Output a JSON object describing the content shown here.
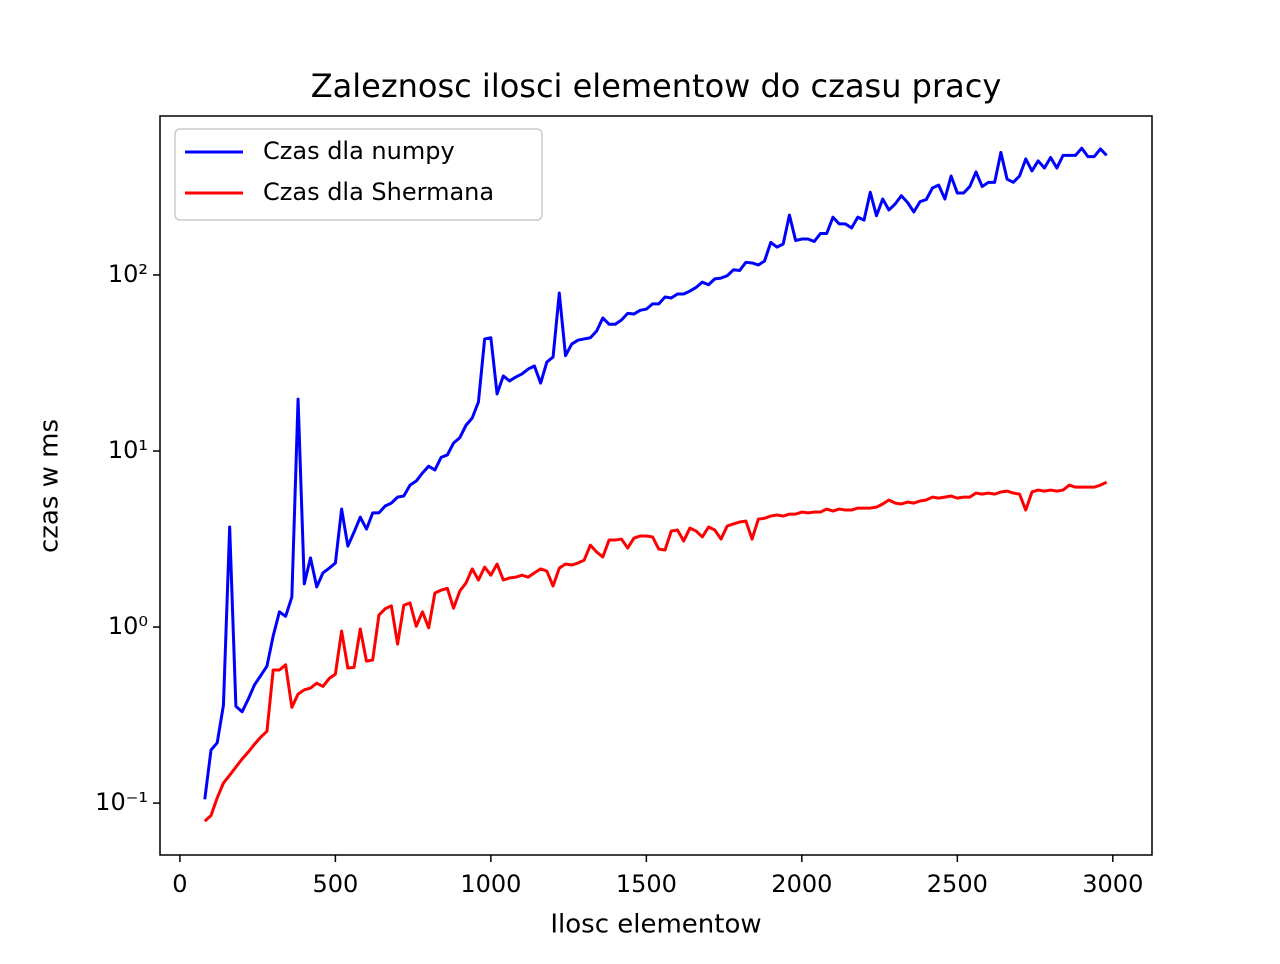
{
  "chart_data": {
    "type": "line",
    "title": "Zaleznosc ilosci elementow do czasu pracy",
    "x_label": "Ilosc elementow",
    "y_label": "czas w ms",
    "x": [
      80,
      100,
      120,
      140,
      160,
      180,
      200,
      220,
      240,
      260,
      280,
      300,
      320,
      340,
      360,
      380,
      400,
      420,
      440,
      460,
      480,
      500,
      520,
      540,
      560,
      580,
      600,
      620,
      640,
      660,
      680,
      700,
      720,
      740,
      760,
      780,
      800,
      820,
      840,
      860,
      880,
      900,
      920,
      940,
      960,
      980,
      1000,
      1020,
      1040,
      1060,
      1080,
      1100,
      1120,
      1140,
      1160,
      1180,
      1200,
      1220,
      1240,
      1260,
      1280,
      1300,
      1320,
      1340,
      1360,
      1380,
      1400,
      1420,
      1440,
      1460,
      1480,
      1500,
      1520,
      1540,
      1560,
      1580,
      1600,
      1620,
      1640,
      1660,
      1680,
      1700,
      1720,
      1740,
      1760,
      1780,
      1800,
      1820,
      1840,
      1860,
      1880,
      1900,
      1920,
      1940,
      1960,
      1980,
      2000,
      2020,
      2040,
      2060,
      2080,
      2100,
      2120,
      2140,
      2160,
      2180,
      2200,
      2220,
      2240,
      2260,
      2280,
      2300,
      2320,
      2340,
      2360,
      2380,
      2400,
      2420,
      2440,
      2460,
      2480,
      2500,
      2520,
      2540,
      2560,
      2580,
      2600,
      2620,
      2640,
      2660,
      2680,
      2700,
      2720,
      2740,
      2760,
      2780,
      2800,
      2820,
      2840,
      2860,
      2880,
      2900,
      2920,
      2940,
      2960,
      2980
    ],
    "series": [
      {
        "name": "Czas dla numpy",
        "color": "#0000ff",
        "values": [
          0.105,
          0.2,
          0.22,
          0.36,
          3.7,
          0.355,
          0.33,
          0.39,
          0.47,
          0.53,
          0.6,
          0.89,
          1.22,
          1.15,
          1.48,
          19.7,
          1.76,
          2.47,
          1.69,
          2.03,
          2.16,
          2.31,
          4.68,
          2.88,
          3.46,
          4.21,
          3.6,
          4.45,
          4.45,
          4.87,
          5.06,
          5.47,
          5.55,
          6.4,
          6.75,
          7.5,
          8.2,
          7.8,
          9.2,
          9.5,
          11.1,
          11.9,
          14.0,
          15.4,
          19.0,
          43.3,
          44,
          21.1,
          26.7,
          25,
          26.3,
          27.4,
          29.2,
          30.4,
          24.3,
          32,
          34.2,
          79,
          34.8,
          40.5,
          42.6,
          43.3,
          44,
          48,
          57,
          52.5,
          52.5,
          55.5,
          60.5,
          60,
          63,
          64,
          68.5,
          68.5,
          75,
          74,
          78,
          78,
          81,
          85,
          91,
          88,
          95,
          96,
          99,
          107,
          106,
          118,
          117,
          114,
          120,
          153,
          144,
          150,
          219,
          157,
          160,
          160,
          155,
          172,
          172,
          213,
          195,
          195,
          185,
          213,
          205,
          295,
          217,
          270,
          234,
          253,
          282,
          258,
          228,
          261,
          268,
          312,
          324,
          270,
          365,
          292,
          292,
          318,
          385,
          318,
          336,
          336,
          497,
          350,
          336,
          365,
          456,
          390,
          445,
          405,
          465,
          405,
          478,
          478,
          478,
          525,
          470,
          470,
          520,
          478
        ]
      },
      {
        "name": "Czas dla Shermana",
        "color": "#ff0000",
        "values": [
          0.079,
          0.085,
          0.107,
          0.13,
          0.144,
          0.16,
          0.178,
          0.195,
          0.216,
          0.237,
          0.256,
          0.57,
          0.57,
          0.61,
          0.35,
          0.416,
          0.44,
          0.45,
          0.48,
          0.46,
          0.51,
          0.54,
          0.95,
          0.585,
          0.59,
          0.975,
          0.64,
          0.65,
          1.17,
          1.27,
          1.32,
          0.8,
          1.33,
          1.37,
          1.01,
          1.22,
          0.99,
          1.56,
          1.62,
          1.66,
          1.28,
          1.6,
          1.78,
          2.14,
          1.85,
          2.19,
          1.97,
          2.28,
          1.85,
          1.9,
          1.92,
          1.97,
          1.92,
          2.03,
          2.14,
          2.08,
          1.71,
          2.16,
          2.28,
          2.25,
          2.31,
          2.4,
          2.92,
          2.67,
          2.5,
          3.12,
          3.12,
          3.16,
          2.81,
          3.2,
          3.29,
          3.29,
          3.25,
          2.77,
          2.74,
          3.51,
          3.56,
          3.08,
          3.65,
          3.51,
          3.25,
          3.7,
          3.56,
          3.16,
          3.75,
          3.85,
          3.95,
          4.0,
          3.16,
          4.1,
          4.15,
          4.27,
          4.33,
          4.27,
          4.38,
          4.38,
          4.5,
          4.45,
          4.5,
          4.5,
          4.68,
          4.56,
          4.68,
          4.62,
          4.62,
          4.74,
          4.74,
          4.74,
          4.8,
          5.0,
          5.27,
          5.06,
          5.0,
          5.13,
          5.06,
          5.2,
          5.27,
          5.47,
          5.4,
          5.47,
          5.55,
          5.4,
          5.47,
          5.47,
          5.77,
          5.69,
          5.77,
          5.69,
          5.85,
          5.92,
          5.77,
          5.69,
          4.62,
          5.85,
          6.0,
          5.92,
          6.0,
          5.92,
          6.0,
          6.4,
          6.23,
          6.23,
          6.23,
          6.23,
          6.4,
          6.65
        ]
      }
    ],
    "xlim": [
      -64,
      3126
    ],
    "xticks": [
      0,
      500,
      1000,
      1500,
      2000,
      2500,
      3000
    ],
    "ylim": [
      0.0507,
      800
    ],
    "yscale": "log",
    "yticks": [
      {
        "value": 0.1,
        "label": "10⁻¹"
      },
      {
        "value": 1,
        "label": "10⁰"
      },
      {
        "value": 10,
        "label": "10¹"
      },
      {
        "value": 100,
        "label": "10²"
      }
    ],
    "legend": "upper left"
  }
}
